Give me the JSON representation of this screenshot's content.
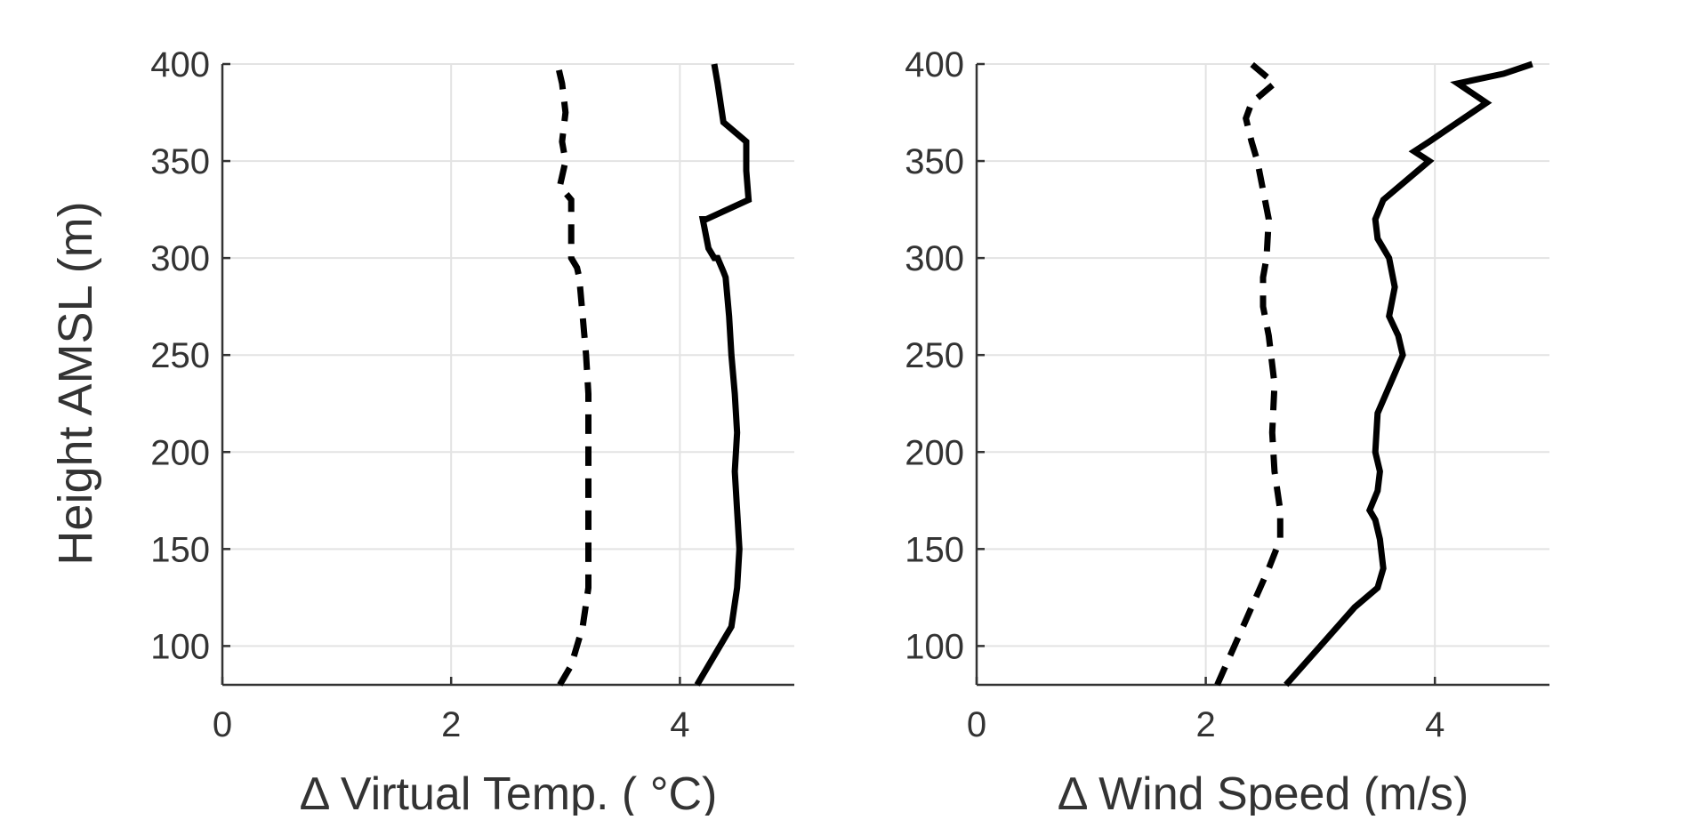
{
  "chart_data": [
    {
      "type": "line",
      "xlabel": "Δ Virtual Temp. (  °C)",
      "ylabel": "Height AMSL (m)",
      "xlim": [
        0,
        5
      ],
      "ylim": [
        80,
        400
      ],
      "xticks": [
        0,
        2,
        4
      ],
      "xtick_labels": [
        "0",
        "2",
        "4"
      ],
      "yticks": [
        100,
        150,
        200,
        250,
        300,
        350,
        400
      ],
      "ytick_labels": [
        "100",
        "150",
        "200",
        "250",
        "300",
        "350",
        "400"
      ],
      "grid": true,
      "series": [
        {
          "style": "dashed",
          "x": [
            2.95,
            3.05,
            3.15,
            3.2,
            3.2,
            3.2,
            3.2,
            3.2,
            3.2,
            3.18,
            3.15,
            3.12,
            3.1,
            3.05,
            3.05,
            3.05,
            2.95,
            3.0,
            2.97,
            3.0,
            2.97,
            2.93
          ],
          "y": [
            80,
            90,
            110,
            130,
            150,
            170,
            190,
            210,
            230,
            250,
            270,
            290,
            295,
            300,
            310,
            330,
            337,
            350,
            360,
            375,
            390,
            400
          ]
        },
        {
          "style": "solid",
          "x": [
            4.15,
            4.3,
            4.45,
            4.5,
            4.52,
            4.5,
            4.48,
            4.5,
            4.48,
            4.45,
            4.43,
            4.4,
            4.38,
            4.33,
            4.3,
            4.25,
            4.2,
            4.23,
            4.6,
            4.58,
            4.58,
            4.38,
            4.33,
            4.3
          ],
          "y": [
            80,
            95,
            110,
            130,
            150,
            170,
            190,
            210,
            230,
            250,
            270,
            290,
            293,
            300,
            300,
            305,
            320,
            320,
            330,
            345,
            360,
            370,
            390,
            400
          ]
        }
      ]
    },
    {
      "type": "line",
      "xlabel": "Δ Wind Speed (m/s)",
      "ylabel": "",
      "xlim": [
        0,
        5
      ],
      "ylim": [
        80,
        400
      ],
      "xticks": [
        0,
        2,
        4
      ],
      "xtick_labels": [
        "0",
        "2",
        "4"
      ],
      "yticks": [
        100,
        150,
        200,
        250,
        300,
        350,
        400
      ],
      "ytick_labels": [
        "100",
        "150",
        "200",
        "250",
        "300",
        "350",
        "400"
      ],
      "grid": true,
      "series": [
        {
          "style": "dashed",
          "x": [
            2.1,
            2.25,
            2.4,
            2.55,
            2.65,
            2.65,
            2.6,
            2.58,
            2.6,
            2.55,
            2.5,
            2.5,
            2.53,
            2.55,
            2.5,
            2.45,
            2.4,
            2.35,
            2.4,
            2.6,
            2.4
          ],
          "y": [
            80,
            100,
            120,
            140,
            155,
            170,
            190,
            210,
            235,
            260,
            275,
            290,
            300,
            320,
            335,
            350,
            360,
            372,
            380,
            390,
            400
          ]
        },
        {
          "style": "solid",
          "x": [
            2.7,
            3.0,
            3.3,
            3.5,
            3.55,
            3.52,
            3.48,
            3.43,
            3.5,
            3.52,
            3.48,
            3.5,
            3.72,
            3.68,
            3.6,
            3.65,
            3.6,
            3.5,
            3.48,
            3.55,
            3.75,
            3.95,
            3.82,
            3.95,
            4.2,
            4.45,
            4.2,
            4.6,
            4.85
          ],
          "y": [
            80,
            100,
            120,
            130,
            140,
            155,
            165,
            170,
            180,
            190,
            200,
            220,
            250,
            260,
            270,
            285,
            300,
            310,
            320,
            330,
            340,
            350,
            355,
            360,
            370,
            380,
            390,
            395,
            400
          ]
        }
      ]
    }
  ]
}
